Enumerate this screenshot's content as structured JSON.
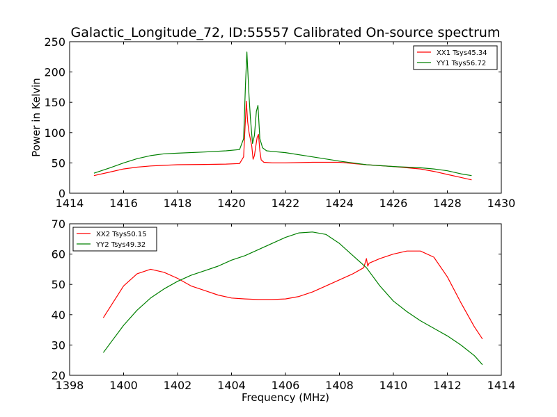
{
  "figure": {
    "title": "Galactic_Longitude_72, ID:55557 Calibrated On-source spectrum"
  },
  "chart_data": [
    {
      "type": "line",
      "title": "Galactic_Longitude_72, ID:55557 Calibrated On-source spectrum",
      "xlabel": "",
      "ylabel": "Power in Kelvin",
      "xlim": [
        1414,
        1430
      ],
      "ylim": [
        0,
        250
      ],
      "xticks": [
        1414,
        1416,
        1418,
        1420,
        1422,
        1424,
        1426,
        1428,
        1430
      ],
      "yticks": [
        0,
        50,
        100,
        150,
        200,
        250
      ],
      "grid": false,
      "legend_position": "top-right",
      "series": [
        {
          "name": "XX1 Tsys45.34",
          "color": "#ff0000",
          "x": [
            1414.9,
            1415.5,
            1416.0,
            1416.5,
            1417.0,
            1417.5,
            1418.0,
            1419.0,
            1419.8,
            1420.3,
            1420.45,
            1420.55,
            1420.6,
            1420.65,
            1420.75,
            1420.8,
            1420.85,
            1420.95,
            1421.0,
            1421.05,
            1421.1,
            1421.2,
            1421.5,
            1422.0,
            1423.0,
            1424.0,
            1425.0,
            1426.0,
            1427.0,
            1427.5,
            1428.0,
            1428.5,
            1428.9
          ],
          "y": [
            29,
            35,
            40,
            43,
            45,
            46,
            47,
            47.5,
            48,
            49,
            60,
            152,
            118,
            100,
            78,
            56,
            62,
            92,
            97,
            70,
            55,
            51,
            50,
            50,
            51,
            51,
            47,
            44,
            40,
            36,
            31,
            26,
            22
          ]
        },
        {
          "name": "YY1 Tsys56.72",
          "color": "#008000",
          "x": [
            1414.9,
            1415.5,
            1416.0,
            1416.5,
            1417.0,
            1417.5,
            1418.0,
            1419.0,
            1419.8,
            1420.3,
            1420.45,
            1420.52,
            1420.57,
            1420.65,
            1420.7,
            1420.78,
            1420.85,
            1420.92,
            1420.98,
            1421.05,
            1421.15,
            1421.3,
            1421.5,
            1422.0,
            1423.0,
            1424.0,
            1425.0,
            1426.0,
            1427.0,
            1427.5,
            1428.0,
            1428.5,
            1428.9
          ],
          "y": [
            33,
            42,
            50,
            57,
            62,
            65,
            66,
            68,
            70,
            72,
            90,
            180,
            233,
            160,
            125,
            82,
            95,
            135,
            145,
            90,
            75,
            70,
            69,
            67,
            60,
            53,
            47,
            44,
            42,
            40,
            37,
            32,
            29
          ]
        }
      ]
    },
    {
      "type": "line",
      "title": "",
      "xlabel": "Frequency (MHz)",
      "ylabel": "",
      "xlim": [
        1398,
        1414
      ],
      "ylim": [
        20,
        70
      ],
      "xticks": [
        1398,
        1400,
        1402,
        1404,
        1406,
        1408,
        1410,
        1412,
        1414
      ],
      "yticks": [
        20,
        30,
        40,
        50,
        60,
        70
      ],
      "grid": false,
      "legend_position": "top-left",
      "series": [
        {
          "name": "XX2 Tsys50.15",
          "color": "#ff0000",
          "x": [
            1399.25,
            1399.5,
            1400.0,
            1400.5,
            1401.0,
            1401.5,
            1402.0,
            1402.5,
            1403.0,
            1403.5,
            1404.0,
            1404.5,
            1405.0,
            1405.5,
            1406.0,
            1406.5,
            1407.0,
            1407.5,
            1408.0,
            1408.5,
            1408.9,
            1409.0,
            1409.05,
            1409.1,
            1409.5,
            1410.0,
            1410.5,
            1411.0,
            1411.5,
            1412.0,
            1412.5,
            1413.0,
            1413.3
          ],
          "y": [
            39,
            42.5,
            49.5,
            53.5,
            55,
            54,
            52,
            49.5,
            48,
            46.5,
            45.5,
            45.2,
            45,
            45,
            45.2,
            46,
            47.5,
            49.5,
            51.5,
            53.5,
            55.5,
            58.5,
            56,
            57,
            58.5,
            60,
            61,
            61,
            59,
            52.5,
            44,
            36,
            32
          ]
        },
        {
          "name": "YY2 Tsys49.32",
          "color": "#008000",
          "x": [
            1399.25,
            1399.5,
            1400.0,
            1400.5,
            1401.0,
            1401.5,
            1402.0,
            1402.5,
            1403.0,
            1403.5,
            1404.0,
            1404.5,
            1405.0,
            1405.5,
            1406.0,
            1406.5,
            1407.0,
            1407.5,
            1408.0,
            1408.5,
            1409.0,
            1409.5,
            1410.0,
            1410.5,
            1411.0,
            1411.5,
            1412.0,
            1412.5,
            1413.0,
            1413.3
          ],
          "y": [
            27.5,
            30.5,
            36.5,
            41.5,
            45.5,
            48.5,
            51,
            53,
            54.5,
            56,
            58,
            59.5,
            61.5,
            63.5,
            65.5,
            67,
            67.3,
            66.5,
            63.5,
            59.5,
            55.5,
            49.5,
            44.5,
            41,
            38,
            35.5,
            33,
            30,
            26.5,
            23.5
          ]
        }
      ]
    }
  ]
}
